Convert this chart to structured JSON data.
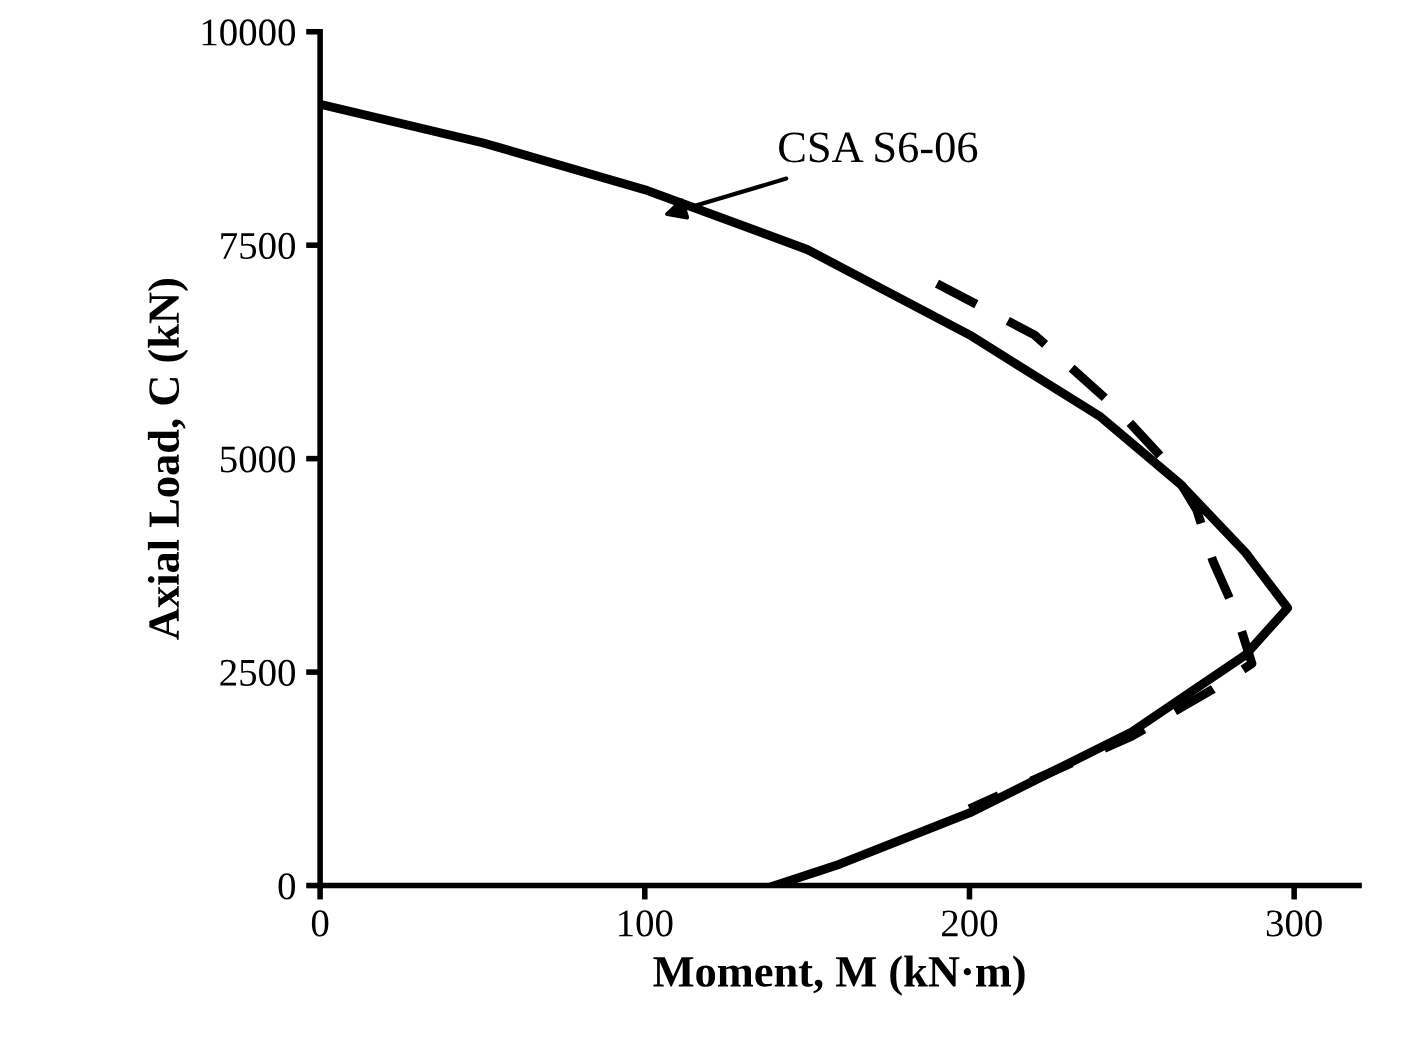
{
  "chart_data": {
    "type": "line",
    "xlabel": "Moment, M (kN·m)",
    "ylabel": "Axial Load, C (kN)",
    "xlim": [
      0,
      320
    ],
    "xticks": [
      0,
      100,
      200,
      300
    ],
    "ylim": [
      0,
      10000
    ],
    "yticks": [
      0,
      2500,
      5000,
      7500,
      10000
    ],
    "grid": false,
    "marker": "none",
    "series": [
      {
        "name": null,
        "color": "#000000",
        "line_style": "solid",
        "x": [
          0,
          50,
          100,
          150,
          200,
          240,
          265,
          285,
          298,
          285,
          250,
          200,
          160,
          140
        ],
        "values": [
          9150,
          8700,
          8150,
          7450,
          6450,
          5500,
          4700,
          3900,
          3250,
          2700,
          1800,
          850,
          250,
          0
        ]
      },
      {
        "color": "#000000",
        "line_style": "dashed",
        "x": [
          190,
          220,
          245,
          262,
          270,
          275,
          282,
          287,
          275,
          250,
          200
        ],
        "values": [
          7050,
          6450,
          5600,
          4900,
          4400,
          3800,
          3200,
          2600,
          2300,
          1750,
          900
        ]
      }
    ],
    "annotations": [
      "CSA S6-06"
    ]
  }
}
